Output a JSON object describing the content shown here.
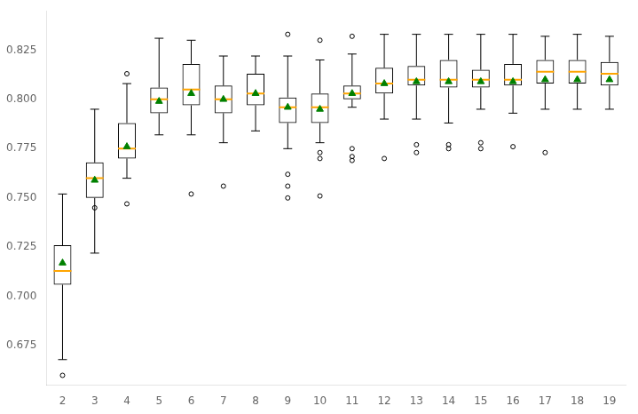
{
  "chart_data": {
    "type": "box",
    "categories": [
      "2",
      "3",
      "4",
      "5",
      "6",
      "7",
      "8",
      "9",
      "10",
      "11",
      "12",
      "13",
      "14",
      "15",
      "16",
      "17",
      "18",
      "19"
    ],
    "series": [
      {
        "type": "box",
        "color": "black",
        "values": [
          {
            "whislo": 0.668,
            "q1": 0.706,
            "q3": 0.726,
            "whishi": 0.752
          },
          {
            "whislo": 0.722,
            "q1": 0.75,
            "q3": 0.768,
            "whishi": 0.795
          },
          {
            "whislo": 0.76,
            "q1": 0.77,
            "q3": 0.788,
            "whishi": 0.808
          },
          {
            "whislo": 0.782,
            "q1": 0.793,
            "q3": 0.806,
            "whishi": 0.831
          },
          {
            "whislo": 0.782,
            "q1": 0.797,
            "q3": 0.818,
            "whishi": 0.83
          },
          {
            "whislo": 0.778,
            "q1": 0.793,
            "q3": 0.807,
            "whishi": 0.822
          },
          {
            "whislo": 0.784,
            "q1": 0.797,
            "q3": 0.813,
            "whishi": 0.822
          },
          {
            "whislo": 0.775,
            "q1": 0.788,
            "q3": 0.801,
            "whishi": 0.822
          },
          {
            "whislo": 0.778,
            "q1": 0.788,
            "q3": 0.803,
            "whishi": 0.82
          },
          {
            "whislo": 0.796,
            "q1": 0.8,
            "q3": 0.807,
            "whishi": 0.823
          },
          {
            "whislo": 0.79,
            "q1": 0.803,
            "q3": 0.816,
            "whishi": 0.833
          },
          {
            "whislo": 0.79,
            "q1": 0.807,
            "q3": 0.817,
            "whishi": 0.833
          },
          {
            "whislo": 0.788,
            "q1": 0.806,
            "q3": 0.82,
            "whishi": 0.833
          },
          {
            "whislo": 0.795,
            "q1": 0.806,
            "q3": 0.815,
            "whishi": 0.833
          },
          {
            "whislo": 0.793,
            "q1": 0.807,
            "q3": 0.818,
            "whishi": 0.833
          },
          {
            "whislo": 0.795,
            "q1": 0.808,
            "q3": 0.82,
            "whishi": 0.832
          },
          {
            "whislo": 0.795,
            "q1": 0.808,
            "q3": 0.82,
            "whishi": 0.833
          },
          {
            "whislo": 0.795,
            "q1": 0.807,
            "q3": 0.819,
            "whishi": 0.832
          }
        ]
      },
      {
        "type": "median",
        "color": "orange",
        "values": [
          0.713,
          0.76,
          0.775,
          0.8,
          0.805,
          0.8,
          0.803,
          0.796,
          0.796,
          0.803,
          0.808,
          0.81,
          0.81,
          0.81,
          0.81,
          0.814,
          0.814,
          0.813
        ]
      },
      {
        "type": "mean",
        "color": "green",
        "marker": "triangle",
        "values": [
          0.717,
          0.759,
          0.776,
          0.799,
          0.803,
          0.8,
          0.803,
          0.796,
          0.795,
          0.803,
          0.808,
          0.809,
          0.809,
          0.809,
          0.809,
          0.81,
          0.81,
          0.81
        ]
      },
      {
        "type": "flier",
        "color": "black",
        "marker": "circle",
        "values": [
          [
            0.66
          ],
          [
            0.745
          ],
          [
            0.813,
            0.747
          ],
          [],
          [
            0.752
          ],
          [
            0.756
          ],
          [],
          [
            0.833,
            0.762,
            0.756,
            0.75
          ],
          [
            0.83,
            0.773,
            0.77,
            0.751
          ],
          [
            0.832,
            0.775,
            0.771,
            0.769
          ],
          [
            0.77
          ],
          [
            0.777,
            0.773
          ],
          [
            0.777,
            0.775
          ],
          [
            0.778,
            0.775
          ],
          [
            0.776
          ],
          [
            0.773
          ],
          [],
          []
        ]
      }
    ],
    "ylim": [
      0.655,
      0.845
    ],
    "yticks": [
      0.675,
      {
        "value": 0.7,
        "label": "0.700"
      },
      0.725,
      {
        "value": 0.75,
        "label": "0.750"
      },
      0.775,
      {
        "value": 0.8,
        "label": "0.800"
      },
      0.825
    ],
    "grid": false
  }
}
